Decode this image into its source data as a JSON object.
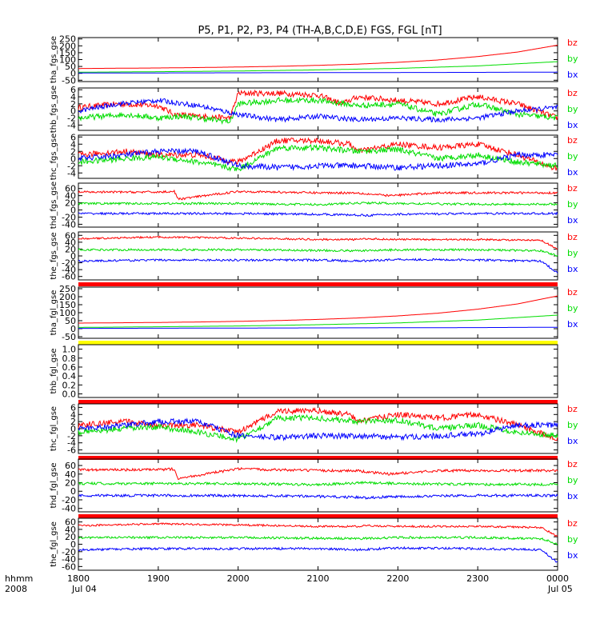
{
  "chart_data": {
    "type": "line",
    "title": "P5, P1, P2, P3, P4 (TH-A,B,C,D,E) FGS, FGL [nT]",
    "x_ticks": [
      "1800",
      "1900",
      "2000",
      "2100",
      "2200",
      "2300",
      "0000"
    ],
    "x_date_start": "Jul 04",
    "x_date_end": "Jul 05",
    "x_label_top": "hhmm",
    "x_label_bottom": "2008",
    "xlim": [
      "2008-07-04 18:00",
      "2008-07-05 00:00"
    ],
    "series_colors": {
      "bx": "#0000ff",
      "by": "#00dd00",
      "bz": "#ff0000"
    },
    "panels": [
      {
        "ylabel": "tha_fgs_gse",
        "yticks": [
          "250",
          "200",
          "150",
          "100",
          "50",
          "0",
          "-50"
        ],
        "ylim": [
          -60,
          260
        ],
        "legend": [
          "bz",
          "by",
          "bx"
        ],
        "flag_bar": "",
        "series": [
          {
            "name": "bz",
            "x": [
              0,
              0.5,
              1,
              1.5,
              2,
              2.5,
              3,
              3.5,
              4,
              4.5,
              5,
              5.5,
              6
            ],
            "values": [
              35,
              37,
              39,
              42,
              46,
              51,
              58,
              67,
              80,
              97,
              122,
              155,
              205
            ],
            "noise": 0
          },
          {
            "name": "by",
            "x": [
              0,
              1,
              2,
              3,
              4,
              5,
              6
            ],
            "values": [
              8,
              12,
              17,
              25,
              36,
              54,
              85
            ],
            "noise": 0
          },
          {
            "name": "bx",
            "x": [
              0,
              1,
              2,
              3,
              4,
              5,
              6
            ],
            "values": [
              2,
              3,
              4,
              5,
              6,
              7,
              9
            ],
            "noise": 0
          }
        ]
      },
      {
        "ylabel": "thb_fgs_gse",
        "yticks": [
          "6",
          "4",
          "2",
          "0",
          "-2",
          "-4"
        ],
        "ylim": [
          -5.5,
          6.5
        ],
        "legend": [
          "bz",
          "by",
          "bx"
        ],
        "flag_bar": "",
        "series": [
          {
            "name": "bz",
            "x": [
              0,
              0.5,
              1,
              1.2,
              1.5,
              1.9,
              2.0,
              2.5,
              3,
              3.3,
              3.5,
              4,
              4.5,
              5,
              5.5,
              6
            ],
            "values": [
              1,
              2,
              1.5,
              -1,
              -1.5,
              -2,
              5,
              5,
              4.5,
              2,
              4,
              3,
              2,
              4,
              2,
              -2
            ],
            "noise": 0.8
          },
          {
            "name": "by",
            "x": [
              0,
              0.6,
              1,
              1.3,
              1.9,
              2.0,
              2.5,
              3,
              3.5,
              4,
              4.5,
              5,
              5.5,
              6
            ],
            "values": [
              -2,
              -1,
              -2,
              -1.5,
              -3,
              2,
              3,
              3,
              1.5,
              2,
              -1,
              2,
              -1,
              -2
            ],
            "noise": 0.8
          },
          {
            "name": "bx",
            "x": [
              0,
              0.5,
              1,
              1.5,
              2.0,
              2.5,
              3,
              3.5,
              4,
              4.5,
              5,
              5.5,
              6
            ],
            "values": [
              0,
              2,
              3,
              1.5,
              -1,
              -2.5,
              -1.5,
              -2.5,
              -2,
              -2.5,
              -2,
              0,
              1
            ],
            "noise": 0.7
          }
        ]
      },
      {
        "ylabel": "thc_fgs_gse",
        "yticks": [
          "6",
          "4",
          "2",
          "0",
          "-2",
          "-4"
        ],
        "ylim": [
          -5.5,
          6.5
        ],
        "legend": [
          "bz",
          "by",
          "bx"
        ],
        "flag_bar": "",
        "series": [
          {
            "name": "bz",
            "x": [
              0,
              0.6,
              1,
              1.5,
              2.0,
              2.5,
              3,
              3.4,
              3.5,
              4,
              4.5,
              5,
              5.5,
              6
            ],
            "values": [
              1,
              2,
              1,
              1,
              -1,
              5,
              5,
              4,
              2,
              4,
              3,
              4,
              1,
              -3
            ],
            "noise": 0.8
          },
          {
            "name": "by",
            "x": [
              0,
              0.6,
              1,
              1.5,
              2.0,
              2.5,
              3,
              3.5,
              4,
              4.5,
              5,
              5.5,
              6
            ],
            "values": [
              -1,
              0,
              0.5,
              -1,
              -3,
              3,
              3,
              2,
              2.5,
              0,
              1,
              -1,
              -2
            ],
            "noise": 0.8
          },
          {
            "name": "bx",
            "x": [
              0,
              0.6,
              1,
              1.5,
              2.0,
              2.5,
              3,
              3.5,
              4,
              4.5,
              5,
              5.5,
              6
            ],
            "values": [
              0,
              1,
              2,
              2,
              -2,
              -2.5,
              -2,
              -2,
              -2.5,
              -2,
              -1.5,
              1,
              1
            ],
            "noise": 0.8
          }
        ]
      },
      {
        "ylabel": "thd_fgs_gse",
        "yticks": [
          "60",
          "40",
          "20",
          "0",
          "-20",
          "-40"
        ],
        "ylim": [
          -48,
          75
        ],
        "legend": [
          "bz",
          "by",
          "bx"
        ],
        "flag_bar": "",
        "series": [
          {
            "name": "bz",
            "x": [
              0,
              1,
              1.2,
              1.25,
              2,
              3,
              3.5,
              3.6,
              3.9,
              4.5,
              5,
              6
            ],
            "values": [
              50,
              50,
              52,
              30,
              52,
              48,
              48,
              45,
              40,
              48,
              48,
              48
            ],
            "noise": 3
          },
          {
            "name": "by",
            "x": [
              0,
              1,
              2,
              3,
              3.6,
              4,
              5,
              6
            ],
            "values": [
              18,
              18,
              18,
              15,
              20,
              18,
              16,
              16
            ],
            "noise": 3
          },
          {
            "name": "bx",
            "x": [
              0,
              1,
              2,
              3,
              3.6,
              4,
              5,
              6
            ],
            "values": [
              -10,
              -10,
              -10,
              -12,
              -15,
              -12,
              -10,
              -10
            ],
            "noise": 3
          }
        ]
      },
      {
        "ylabel": "the_fgs_gse",
        "yticks": [
          "60",
          "40",
          "20",
          "0",
          "-20",
          "-40",
          "-60"
        ],
        "ylim": [
          -70,
          70
        ],
        "legend": [
          "bz",
          "by",
          "bx"
        ],
        "flag_bar": "#ff0000",
        "series": [
          {
            "name": "bz",
            "x": [
              0,
              1,
              2,
              3,
              3.5,
              3.6,
              4,
              5,
              5.8,
              6
            ],
            "values": [
              50,
              55,
              52,
              48,
              48,
              50,
              48,
              48,
              45,
              20
            ],
            "noise": 2.5
          },
          {
            "name": "by",
            "x": [
              0,
              1,
              2,
              3,
              3.5,
              4,
              5,
              5.8,
              6
            ],
            "values": [
              18,
              18,
              18,
              16,
              15,
              18,
              18,
              15,
              0
            ],
            "noise": 3
          },
          {
            "name": "bx",
            "x": [
              0,
              1,
              2,
              3,
              3.5,
              4,
              5,
              5.8,
              6
            ],
            "values": [
              -15,
              -12,
              -12,
              -12,
              -15,
              -10,
              -12,
              -15,
              -50
            ],
            "noise": 3
          }
        ]
      },
      {
        "ylabel": "tha_fgl_gse",
        "yticks": [
          "250",
          "200",
          "150",
          "100",
          "50",
          "0",
          "-50"
        ],
        "ylim": [
          -60,
          260
        ],
        "legend": [
          "bz",
          "by",
          "bx"
        ],
        "flag_bar": "#ffff00",
        "series": [
          {
            "name": "bz",
            "x": [
              0,
              0.5,
              1,
              1.5,
              2,
              2.5,
              3,
              3.5,
              4,
              4.5,
              5,
              5.5,
              6
            ],
            "values": [
              35,
              37,
              39,
              42,
              46,
              51,
              58,
              67,
              80,
              97,
              122,
              155,
              205
            ],
            "noise": 0
          },
          {
            "name": "by",
            "x": [
              0,
              1,
              2,
              3,
              4,
              5,
              6
            ],
            "values": [
              8,
              12,
              17,
              25,
              36,
              54,
              85
            ],
            "noise": 0
          },
          {
            "name": "bx",
            "x": [
              0,
              1,
              2,
              3,
              4,
              5,
              6
            ],
            "values": [
              2,
              3,
              4,
              5,
              6,
              7,
              9
            ],
            "noise": 0
          }
        ]
      },
      {
        "ylabel": "thb_fgl_gse",
        "yticks": [
          "1.0",
          "0.8",
          "0.6",
          "0.4",
          "0.2",
          "0.0"
        ],
        "ylim": [
          -0.08,
          1.1
        ],
        "legend": [],
        "flag_bar": "#ff0000",
        "series": []
      },
      {
        "ylabel": "thc_fgl_gse",
        "yticks": [
          "6",
          "4",
          "2",
          "0",
          "-2",
          "-4",
          "-6"
        ],
        "ylim": [
          -7,
          7
        ],
        "legend": [
          "bz",
          "by",
          "bx"
        ],
        "flag_bar": "#ff0000",
        "series": [
          {
            "name": "bz",
            "x": [
              0,
              0.6,
              1,
              1.5,
              2.0,
              2.5,
              3,
              3.4,
              3.5,
              4,
              4.5,
              5,
              5.5,
              6
            ],
            "values": [
              1,
              2,
              1,
              1,
              -1,
              5,
              5,
              4,
              2,
              4,
              3,
              4,
              1,
              -3
            ],
            "noise": 0.8
          },
          {
            "name": "by",
            "x": [
              0,
              0.6,
              1,
              1.5,
              2.0,
              2.5,
              3,
              3.5,
              4,
              4.5,
              5,
              5.5,
              6
            ],
            "values": [
              -1,
              0,
              0.5,
              -1,
              -3,
              3,
              3,
              2,
              2.5,
              0,
              1,
              -1,
              -2
            ],
            "noise": 0.8
          },
          {
            "name": "bx",
            "x": [
              0,
              0.6,
              1,
              1.5,
              2.0,
              2.5,
              3,
              3.5,
              4,
              4.5,
              5,
              5.5,
              6
            ],
            "values": [
              0,
              1,
              2,
              2,
              -2,
              -2.5,
              -2,
              -2,
              -2.5,
              -2,
              -1.5,
              1,
              1
            ],
            "noise": 0.8
          }
        ]
      },
      {
        "ylabel": "thd_fgl_gse",
        "yticks": [
          "60",
          "40",
          "20",
          "0",
          "-20",
          "-40"
        ],
        "ylim": [
          -48,
          75
        ],
        "legend": [
          "bz",
          "by",
          "bx"
        ],
        "flag_bar": "#ff0000",
        "series": [
          {
            "name": "bz",
            "x": [
              0,
              1,
              1.2,
              1.25,
              2,
              3,
              3.5,
              3.6,
              3.9,
              4.5,
              5,
              6
            ],
            "values": [
              50,
              50,
              52,
              30,
              52,
              48,
              48,
              45,
              40,
              48,
              48,
              48
            ],
            "noise": 3
          },
          {
            "name": "by",
            "x": [
              0,
              1,
              2,
              3,
              3.6,
              4,
              5,
              6
            ],
            "values": [
              18,
              18,
              18,
              15,
              20,
              18,
              16,
              16
            ],
            "noise": 3
          },
          {
            "name": "bx",
            "x": [
              0,
              1,
              2,
              3,
              3.6,
              4,
              5,
              6
            ],
            "values": [
              -10,
              -10,
              -10,
              -12,
              -15,
              -12,
              -10,
              -10
            ],
            "noise": 3
          }
        ]
      },
      {
        "ylabel": "the_fgl_gse",
        "yticks": [
          "60",
          "40",
          "20",
          "0",
          "-20",
          "-40",
          "-60"
        ],
        "ylim": [
          -70,
          70
        ],
        "legend": [
          "bz",
          "by",
          "bx"
        ],
        "flag_bar": "",
        "series": [
          {
            "name": "bz",
            "x": [
              0,
              1,
              2,
              3,
              3.5,
              3.6,
              4,
              5,
              5.8,
              6
            ],
            "values": [
              50,
              55,
              52,
              48,
              48,
              50,
              48,
              48,
              45,
              20
            ],
            "noise": 2.5
          },
          {
            "name": "by",
            "x": [
              0,
              1,
              2,
              3,
              3.5,
              4,
              5,
              5.8,
              6
            ],
            "values": [
              18,
              18,
              18,
              16,
              15,
              18,
              18,
              15,
              0
            ],
            "noise": 3
          },
          {
            "name": "bx",
            "x": [
              0,
              1,
              2,
              3,
              3.5,
              4,
              5,
              5.8,
              6
            ],
            "values": [
              -15,
              -12,
              -12,
              -12,
              -15,
              -10,
              -12,
              -15,
              -50
            ],
            "noise": 3
          }
        ]
      }
    ]
  }
}
